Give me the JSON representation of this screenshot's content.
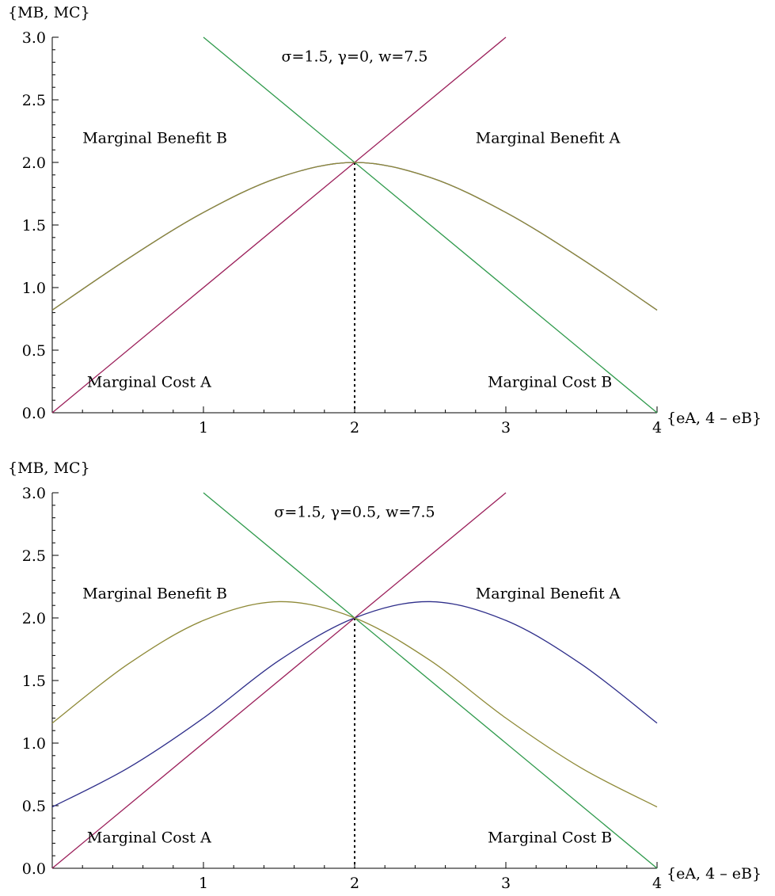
{
  "chart_data": [
    {
      "type": "line",
      "annotation": "σ=1.5, γ=0, w=7.5",
      "xlabel": "{eA, 4 – eB}",
      "ylabel": "{MB, MC}",
      "xlim": [
        0,
        4
      ],
      "ylim": [
        0,
        3
      ],
      "x_ticks": [
        "1",
        "2",
        "3",
        "4"
      ],
      "y_ticks": [
        "0.0",
        "0.5",
        "1.0",
        "1.5",
        "2.0",
        "2.5",
        "3.0"
      ],
      "region_labels": {
        "marginal_benefit_b": "Marginal Benefit B",
        "marginal_benefit_a": "Marginal Benefit A",
        "marginal_cost_a": "Marginal Cost A",
        "marginal_cost_b": "Marginal Cost B"
      },
      "equilibrium_x": 2,
      "series": [
        {
          "key": "mc-a",
          "color": "#9b1f5a",
          "x": [
            0,
            3
          ],
          "y": [
            0,
            3
          ]
        },
        {
          "key": "mc-b",
          "color": "#2f9a4c",
          "x": [
            1,
            4
          ],
          "y": [
            3,
            0
          ]
        },
        {
          "key": "mb-a",
          "color": "#2e2e8a",
          "x": [
            0,
            0.5,
            1,
            1.5,
            2,
            2.5,
            3,
            3.5,
            4
          ],
          "y": [
            0.82,
            1.23,
            1.6,
            1.88,
            2.0,
            1.88,
            1.6,
            1.23,
            0.82
          ]
        },
        {
          "key": "mb-b",
          "color": "#8f8a38",
          "x": [
            0,
            0.5,
            1,
            1.5,
            2,
            2.5,
            3,
            3.5,
            4
          ],
          "y": [
            0.82,
            1.23,
            1.6,
            1.88,
            2.0,
            1.88,
            1.6,
            1.23,
            0.82
          ]
        }
      ]
    },
    {
      "type": "line",
      "annotation": "σ=1.5, γ=0.5, w=7.5",
      "xlabel": "{eA, 4 – eB}",
      "ylabel": "{MB, MC}",
      "xlim": [
        0,
        4
      ],
      "ylim": [
        0,
        3
      ],
      "x_ticks": [
        "1",
        "2",
        "3",
        "4"
      ],
      "y_ticks": [
        "0.0",
        "0.5",
        "1.0",
        "1.5",
        "2.0",
        "2.5",
        "3.0"
      ],
      "region_labels": {
        "marginal_benefit_b": "Marginal Benefit B",
        "marginal_benefit_a": "Marginal Benefit A",
        "marginal_cost_a": "Marginal Cost A",
        "marginal_cost_b": "Marginal Cost B"
      },
      "equilibrium_x": 2,
      "series": [
        {
          "key": "mc-a",
          "color": "#9b1f5a",
          "x": [
            0,
            3
          ],
          "y": [
            0,
            3
          ]
        },
        {
          "key": "mc-b",
          "color": "#2f9a4c",
          "x": [
            1,
            4
          ],
          "y": [
            3,
            0
          ]
        },
        {
          "key": "mb-a",
          "color": "#2e2e8a",
          "x": [
            0,
            0.5,
            1,
            1.5,
            2,
            2.5,
            3,
            3.5,
            4
          ],
          "y": [
            0.49,
            0.8,
            1.2,
            1.66,
            2.0,
            2.13,
            1.98,
            1.63,
            1.16
          ]
        },
        {
          "key": "mb-b",
          "color": "#8f8a38",
          "x": [
            0,
            0.5,
            1,
            1.5,
            2,
            2.5,
            3,
            3.5,
            4
          ],
          "y": [
            1.16,
            1.63,
            1.98,
            2.13,
            2.0,
            1.66,
            1.2,
            0.8,
            0.49
          ]
        }
      ]
    }
  ]
}
